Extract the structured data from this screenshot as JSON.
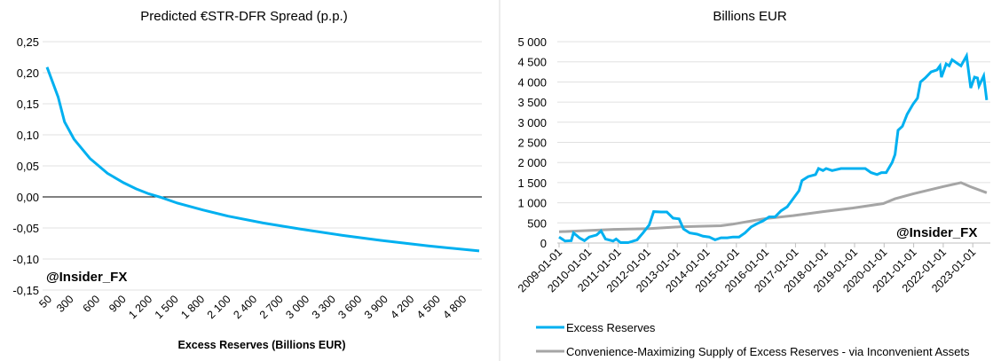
{
  "chart_data": [
    {
      "type": "line",
      "title": "Predicted €STR-DFR Spread (p.p.)",
      "xlabel": "Excess Reserves (Billions EUR)",
      "ylabel": "",
      "watermark": "@Insider_FX",
      "xlim": [
        50,
        5000
      ],
      "ylim": [
        -0.15,
        0.25
      ],
      "yticks": [
        0.25,
        0.2,
        0.15,
        0.1,
        0.05,
        0.0,
        -0.05,
        -0.1,
        -0.15
      ],
      "ytick_labels": [
        "0,25",
        "0,20",
        "0,15",
        "0,10",
        "0,05",
        "0,00",
        "-0,05",
        "-0,10",
        "-0,15"
      ],
      "xticks": [
        50,
        300,
        600,
        900,
        1200,
        1500,
        1800,
        2100,
        2400,
        2700,
        3000,
        3300,
        3600,
        3900,
        4200,
        4500,
        4800
      ],
      "xtick_labels": [
        "50",
        "300",
        "600",
        "900",
        "1 200",
        "1 500",
        "1 800",
        "2 100",
        "2 400",
        "2 700",
        "3 000",
        "3 300",
        "3 600",
        "3 900",
        "4 200",
        "4 500",
        "4 800"
      ],
      "grid": true,
      "color": "#00b0f0",
      "x": [
        50,
        177,
        250,
        359,
        541,
        742,
        924,
        1069,
        1215,
        1360,
        1543,
        1834,
        2125,
        2525,
        2962,
        3436,
        3872,
        4419,
        5000
      ],
      "y": [
        0.209,
        0.161,
        0.121,
        0.093,
        0.062,
        0.038,
        0.023,
        0.013,
        0.005,
        -0.001,
        -0.01,
        -0.021,
        -0.031,
        -0.042,
        -0.052,
        -0.062,
        -0.07,
        -0.079,
        -0.087
      ]
    },
    {
      "type": "line",
      "title": "Billions EUR",
      "xlabel": "",
      "ylabel": "",
      "watermark": "@Insider_FX",
      "xlim": [
        2009,
        2023.47
      ],
      "ylim": [
        0,
        5000
      ],
      "yticks": [
        0,
        500,
        1000,
        1500,
        2000,
        2500,
        3000,
        3500,
        4000,
        4500,
        5000
      ],
      "ytick_labels": [
        "0",
        "500",
        "1 000",
        "1 500",
        "2 000",
        "2 500",
        "3 000",
        "3 500",
        "4 000",
        "4 500",
        "5 000"
      ],
      "xticks": [
        2009,
        2010,
        2011,
        2012,
        2013,
        2014,
        2015,
        2016,
        2017,
        2018,
        2019,
        2020,
        2021,
        2022,
        2023
      ],
      "xtick_labels": [
        "2009-01-01",
        "2010-01-01",
        "2011-01-01",
        "2012-01-01",
        "2013-01-01",
        "2014-01-01",
        "2015-01-01",
        "2016-01-01",
        "2017-01-01",
        "2018-01-01",
        "2019-01-01",
        "2020-01-01",
        "2021-01-01",
        "2022-01-01",
        "2023-01-01"
      ],
      "grid": true,
      "legend_position": "bottom",
      "series": [
        {
          "name": "Excess Reserves",
          "color": "#00b0f0",
          "x": [
            0,
            0.2,
            0.41,
            0.49,
            0.71,
            0.86,
            1.02,
            1.27,
            1.42,
            1.57,
            1.83,
            1.93,
            2.08,
            2.34,
            2.64,
            2.84,
            3.05,
            3.2,
            3.45,
            3.65,
            3.86,
            4.06,
            4.21,
            4.42,
            4.67,
            4.87,
            5.08,
            5.28,
            5.48,
            5.69,
            5.89,
            6.09,
            6.29,
            6.5,
            6.7,
            6.9,
            7.11,
            7.31,
            7.51,
            7.72,
            7.92,
            8.12,
            8.22,
            8.43,
            8.68,
            8.78,
            8.93,
            9.04,
            9.24,
            9.54,
            9.75,
            9.95,
            10.15,
            10.36,
            10.56,
            10.76,
            10.91,
            11.07,
            11.27,
            11.37,
            11.47,
            11.62,
            11.78,
            11.98,
            12.13,
            12.23,
            12.39,
            12.59,
            12.79,
            12.89,
            12.94,
            13.1,
            13.2,
            13.3,
            13.5,
            13.6,
            13.79,
            13.93,
            14.06,
            14.16,
            14.21,
            14.37,
            14.47
          ],
          "y": [
            150,
            50,
            60,
            250,
            120,
            60,
            150,
            200,
            300,
            100,
            50,
            100,
            10,
            10,
            80,
            250,
            450,
            780,
            770,
            770,
            620,
            600,
            350,
            250,
            220,
            170,
            150,
            80,
            130,
            130,
            150,
            150,
            250,
            400,
            480,
            550,
            650,
            650,
            800,
            900,
            1100,
            1300,
            1550,
            1650,
            1700,
            1850,
            1800,
            1850,
            1800,
            1850,
            1850,
            1850,
            1850,
            1850,
            1750,
            1700,
            1750,
            1750,
            2000,
            2200,
            2800,
            2900,
            3200,
            3450,
            3600,
            4000,
            4100,
            4250,
            4300,
            4400,
            4120,
            4450,
            4400,
            4550,
            4450,
            4400,
            4650,
            3850,
            4120,
            4100,
            3900,
            4150,
            3550
          ]
        },
        {
          "name": "Convenience-Maximizing Supply of Excess Reserves - via Inconvenient Assets",
          "color": "#a5a5a5",
          "x": [
            0,
            1.83,
            3.05,
            4.06,
            5.48,
            5.89,
            6.9,
            7.92,
            8.93,
            9.95,
            10.97,
            11.37,
            11.98,
            12.99,
            13.6,
            13.91,
            14.47
          ],
          "y": [
            280,
            340,
            360,
            400,
            430,
            470,
            600,
            680,
            780,
            870,
            980,
            1100,
            1220,
            1400,
            1500,
            1400,
            1250
          ]
        }
      ]
    }
  ]
}
